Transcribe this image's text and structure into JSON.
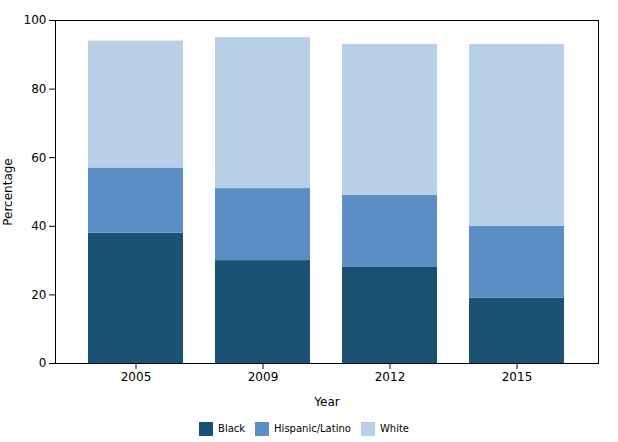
{
  "chart_data": {
    "type": "bar",
    "stacked": true,
    "categories": [
      "2005",
      "2009",
      "2012",
      "2015"
    ],
    "series": [
      {
        "name": "Black",
        "color": "#1a5276",
        "values": [
          38,
          30,
          28,
          19
        ]
      },
      {
        "name": "Hispanic/Latino",
        "color": "#5b8ec4",
        "values": [
          19,
          21,
          21,
          21
        ]
      },
      {
        "name": "White",
        "color": "#b8cfe8",
        "values": [
          37,
          44,
          44,
          53
        ]
      }
    ],
    "xlabel": "Year",
    "ylabel": "Percentage",
    "ylim": [
      0,
      100
    ],
    "yticks": [
      0,
      20,
      40,
      60,
      80,
      100
    ],
    "grid": false,
    "legend": "bottom"
  }
}
